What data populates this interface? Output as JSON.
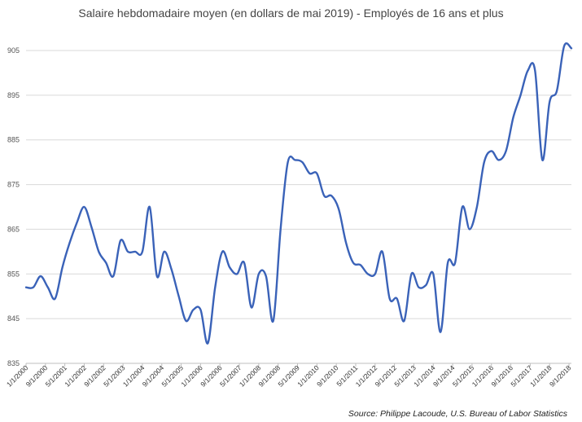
{
  "chart_data": {
    "type": "line",
    "title": "Salaire hebdomadaire moyen (en dollars de mai 2019) - Employés de 16 ans et plus",
    "source": "Source: Philippe Lacoude, U.S. Bureau of Labor Statistics",
    "xlabel": "",
    "ylabel": "",
    "ylim": [
      835,
      905
    ],
    "yticks": [
      835,
      845,
      855,
      865,
      875,
      885,
      895,
      905
    ],
    "grid": true,
    "legend": "none",
    "line_color": "#3a62b8",
    "x_ticks": [
      "1/1/2000",
      "9/1/2000",
      "5/1/2001",
      "1/1/2002",
      "9/1/2002",
      "5/1/2003",
      "1/1/2004",
      "9/1/2004",
      "5/1/2005",
      "1/1/2006",
      "9/1/2006",
      "5/1/2007",
      "1/1/2008",
      "9/1/2008",
      "5/1/2009",
      "1/1/2010",
      "9/1/2010",
      "5/1/2011",
      "1/1/2012",
      "9/1/2012",
      "5/1/2013",
      "1/1/2014",
      "9/1/2014",
      "5/1/2015",
      "1/1/2016",
      "9/1/2016",
      "5/1/2017",
      "1/1/2018",
      "9/1/2018"
    ],
    "series": [
      {
        "values": [
          [
            "2000-01",
            852
          ],
          [
            "2000-04",
            852
          ],
          [
            "2000-07",
            854.5
          ],
          [
            "2000-10",
            852
          ],
          [
            "2001-01",
            849.5
          ],
          [
            "2001-04",
            856.5
          ],
          [
            "2001-07",
            862
          ],
          [
            "2001-10",
            866.5
          ],
          [
            "2002-01",
            870
          ],
          [
            "2002-04",
            865.5
          ],
          [
            "2002-07",
            860
          ],
          [
            "2002-10",
            857.5
          ],
          [
            "2003-01",
            854.5
          ],
          [
            "2003-04",
            862.5
          ],
          [
            "2003-07",
            860
          ],
          [
            "2003-10",
            860
          ],
          [
            "2004-01",
            860
          ],
          [
            "2004-04",
            870
          ],
          [
            "2004-07",
            854.5
          ],
          [
            "2004-10",
            860
          ],
          [
            "2005-01",
            856
          ],
          [
            "2005-04",
            850
          ],
          [
            "2005-07",
            844.5
          ],
          [
            "2005-10",
            847
          ],
          [
            "2006-01",
            847
          ],
          [
            "2006-04",
            839.5
          ],
          [
            "2006-07",
            852
          ],
          [
            "2006-10",
            860
          ],
          [
            "2007-01",
            856.5
          ],
          [
            "2007-04",
            855
          ],
          [
            "2007-07",
            857.5
          ],
          [
            "2007-10",
            847.5
          ],
          [
            "2008-01",
            855
          ],
          [
            "2008-04",
            854.5
          ],
          [
            "2008-07",
            844.5
          ],
          [
            "2008-10",
            865
          ],
          [
            "2009-01",
            880
          ],
          [
            "2009-04",
            880.5
          ],
          [
            "2009-07",
            880
          ],
          [
            "2009-10",
            877.5
          ],
          [
            "2010-01",
            877.5
          ],
          [
            "2010-04",
            872.5
          ],
          [
            "2010-07",
            872.5
          ],
          [
            "2010-10",
            869.5
          ],
          [
            "2011-01",
            862
          ],
          [
            "2011-04",
            857.5
          ],
          [
            "2011-07",
            857
          ],
          [
            "2011-10",
            855
          ],
          [
            "2012-01",
            855
          ],
          [
            "2012-04",
            860
          ],
          [
            "2012-07",
            849.5
          ],
          [
            "2012-10",
            849.5
          ],
          [
            "2013-01",
            844.5
          ],
          [
            "2013-04",
            855
          ],
          [
            "2013-07",
            852
          ],
          [
            "2013-10",
            852.5
          ],
          [
            "2014-01",
            855
          ],
          [
            "2014-04",
            842
          ],
          [
            "2014-07",
            857.5
          ],
          [
            "2014-10",
            857.5
          ],
          [
            "2015-01",
            870
          ],
          [
            "2015-04",
            865
          ],
          [
            "2015-07",
            870
          ],
          [
            "2015-10",
            880
          ],
          [
            "2016-01",
            882.5
          ],
          [
            "2016-04",
            880.5
          ],
          [
            "2016-07",
            882.5
          ],
          [
            "2016-10",
            890
          ],
          [
            "2017-01",
            895
          ],
          [
            "2017-04",
            900.5
          ],
          [
            "2017-07",
            900.5
          ],
          [
            "2017-10",
            880.5
          ],
          [
            "2018-01",
            893.5
          ],
          [
            "2018-04",
            896
          ],
          [
            "2018-07",
            906
          ],
          [
            "2018-10",
            905.5
          ]
        ]
      }
    ]
  }
}
